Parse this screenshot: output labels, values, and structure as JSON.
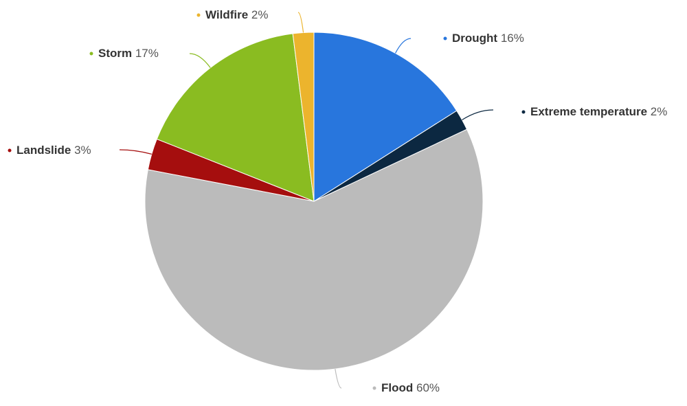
{
  "chart_data": {
    "type": "pie",
    "title": "",
    "slices": [
      {
        "label": "Drought",
        "value": 16,
        "display": "16%",
        "color": "#2876dd"
      },
      {
        "label": "Extreme temperature",
        "value": 2,
        "display": "2%",
        "color": "#0c2841"
      },
      {
        "label": "Flood",
        "value": 60,
        "display": "60%",
        "color": "#bbbbbb"
      },
      {
        "label": "Landslide",
        "value": 3,
        "display": "3%",
        "color": "#a50e0e"
      },
      {
        "label": "Storm",
        "value": 17,
        "display": "17%",
        "color": "#8abc21"
      },
      {
        "label": "Wildfire",
        "value": 2,
        "display": "2%",
        "color": "#ecb42d"
      }
    ],
    "legend": "none",
    "data_labels": "outside-with-connectors"
  }
}
